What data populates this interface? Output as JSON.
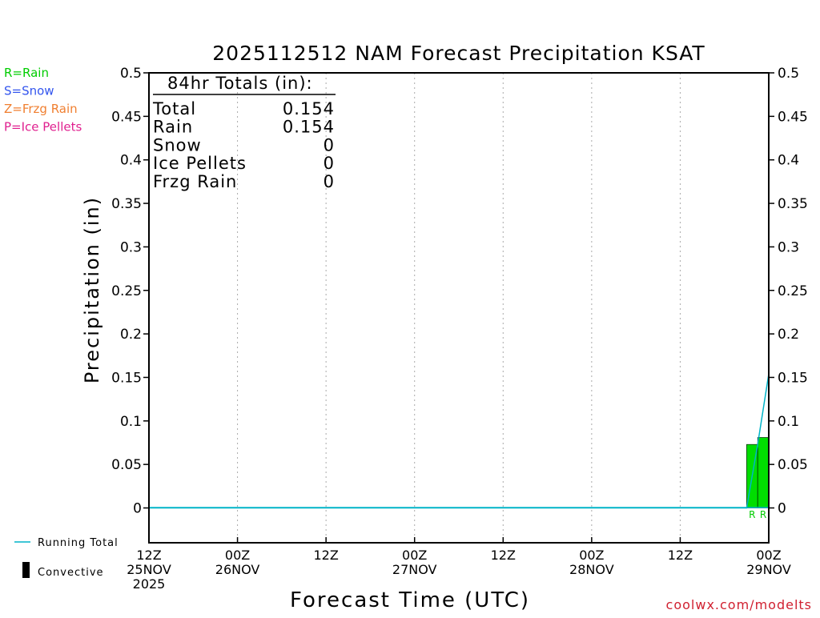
{
  "chart_data": {
    "type": "bar",
    "title": "2025112512 NAM Forecast Precipitation KSAT",
    "xlabel": "Forecast Time (UTC)",
    "ylabel": "Precipitation (in)",
    "ylim": [
      -0.04,
      0.5
    ],
    "yticks": [
      "0.5",
      "0.45",
      "0.4",
      "0.35",
      "0.3",
      "0.25",
      "0.2",
      "0.15",
      "0.1",
      "0.05",
      "0"
    ],
    "forecast_hours_range": [
      0,
      84
    ],
    "xticks": [
      {
        "hour": 0,
        "line1": "12Z",
        "line2": "25NOV",
        "line3": "2025"
      },
      {
        "hour": 12,
        "line1": "00Z",
        "line2": "26NOV",
        "line3": ""
      },
      {
        "hour": 24,
        "line1": "12Z",
        "line2": "",
        "line3": ""
      },
      {
        "hour": 36,
        "line1": "00Z",
        "line2": "27NOV",
        "line3": ""
      },
      {
        "hour": 48,
        "line1": "12Z",
        "line2": "",
        "line3": ""
      },
      {
        "hour": 60,
        "line1": "00Z",
        "line2": "28NOV",
        "line3": ""
      },
      {
        "hour": 72,
        "line1": "12Z",
        "line2": "",
        "line3": ""
      },
      {
        "hour": 84,
        "line1": "00Z",
        "line2": "29NOV",
        "line3": ""
      }
    ],
    "series": [
      {
        "name": "Rain",
        "kind": "bar",
        "color": "#00dd00",
        "bars": [
          {
            "start_hour": 81,
            "end_hour": 82.5,
            "value": 0.073
          },
          {
            "start_hour": 82.5,
            "end_hour": 84,
            "value": 0.081
          }
        ]
      },
      {
        "name": "Running Total",
        "kind": "line",
        "color": "#00b4c8",
        "points": [
          [
            0,
            0
          ],
          [
            81,
            0
          ],
          [
            82.5,
            0.073
          ],
          [
            84,
            0.154
          ]
        ]
      }
    ],
    "ptype_markers": [
      {
        "hour": 81.75,
        "label": "R",
        "color": "#00cc00"
      },
      {
        "hour": 83.25,
        "label": "R",
        "color": "#00cc00"
      }
    ]
  },
  "ptype_legend": [
    {
      "label": "R=Rain",
      "color": "#00cc00"
    },
    {
      "label": "S=Snow",
      "color": "#3355ee"
    },
    {
      "label": "Z=Frzg Rain",
      "color": "#f07f30"
    },
    {
      "label": "P=Ice Pellets",
      "color": "#e0208f"
    }
  ],
  "totals_box": {
    "header": "84hr Totals (in):",
    "rows": [
      {
        "label": "Total",
        "value": "0.154"
      },
      {
        "label": "Rain",
        "value": "0.154"
      },
      {
        "label": "Snow",
        "value": "0"
      },
      {
        "label": "Ice Pellets",
        "value": "0"
      },
      {
        "label": "Frzg Rain",
        "value": "0"
      }
    ]
  },
  "bottom_legend": {
    "running_total_label": "Running Total",
    "running_total_color": "#00b4c8",
    "convective_label": "Convective"
  },
  "watermark": "coolwx.com/modelts",
  "watermark_color": "#d02030"
}
